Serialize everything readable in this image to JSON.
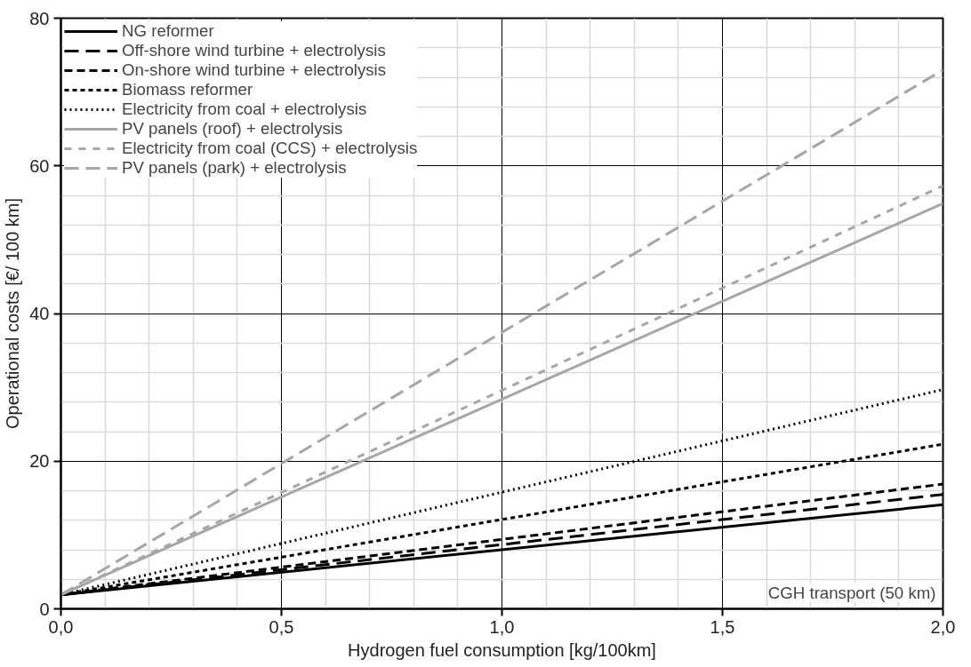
{
  "chart_data": {
    "type": "line",
    "xlabel": "Hydrogen fuel consumption [kg/100km]",
    "ylabel": "Operational costs [€/ 100 km]",
    "x": [
      0.0,
      2.0
    ],
    "series": [
      {
        "name": "NG reformer",
        "color": "#000000",
        "line_style": "solid",
        "values": [
          1.9,
          14.1
        ]
      },
      {
        "name": "Off-shore wind turbine + electrolysis",
        "color": "#000000",
        "line_style": "dashed",
        "values": [
          1.9,
          15.5
        ]
      },
      {
        "name": "On-shore wind turbine + electrolysis",
        "color": "#000000",
        "line_style": "dashed",
        "values": [
          1.9,
          16.9
        ]
      },
      {
        "name": "Biomass reformer",
        "color": "#000000",
        "line_style": "dashed",
        "values": [
          1.9,
          22.3
        ]
      },
      {
        "name": "Electricity from coal + electrolysis",
        "color": "#000000",
        "line_style": "dotted",
        "values": [
          1.9,
          29.7
        ]
      },
      {
        "name": "PV panels (roof) + electrolysis",
        "color": "#a6a6a6",
        "line_style": "solid",
        "values": [
          1.9,
          54.9
        ]
      },
      {
        "name": "Electricity from coal (CCS) + electrolysis",
        "color": "#a6a6a6",
        "line_style": "dashed",
        "values": [
          1.9,
          57.3
        ]
      },
      {
        "name": "PV panels (park) + electrolysis",
        "color": "#a6a6a6",
        "line_style": "dashed",
        "values": [
          1.9,
          73.0
        ]
      }
    ],
    "xlim": [
      0.0,
      2.0
    ],
    "ylim": [
      0,
      80
    ],
    "xticks": [
      {
        "value": 0.0,
        "label": "0,0"
      },
      {
        "value": 0.5,
        "label": "0,5"
      },
      {
        "value": 1.0,
        "label": "1,0"
      },
      {
        "value": 1.5,
        "label": "1,5"
      },
      {
        "value": 2.0,
        "label": "2,0"
      }
    ],
    "yticks": [
      0,
      20,
      40,
      60,
      80
    ],
    "grid": true,
    "legend": "top left",
    "annotations": [
      "CGH transport (50 km)"
    ]
  }
}
